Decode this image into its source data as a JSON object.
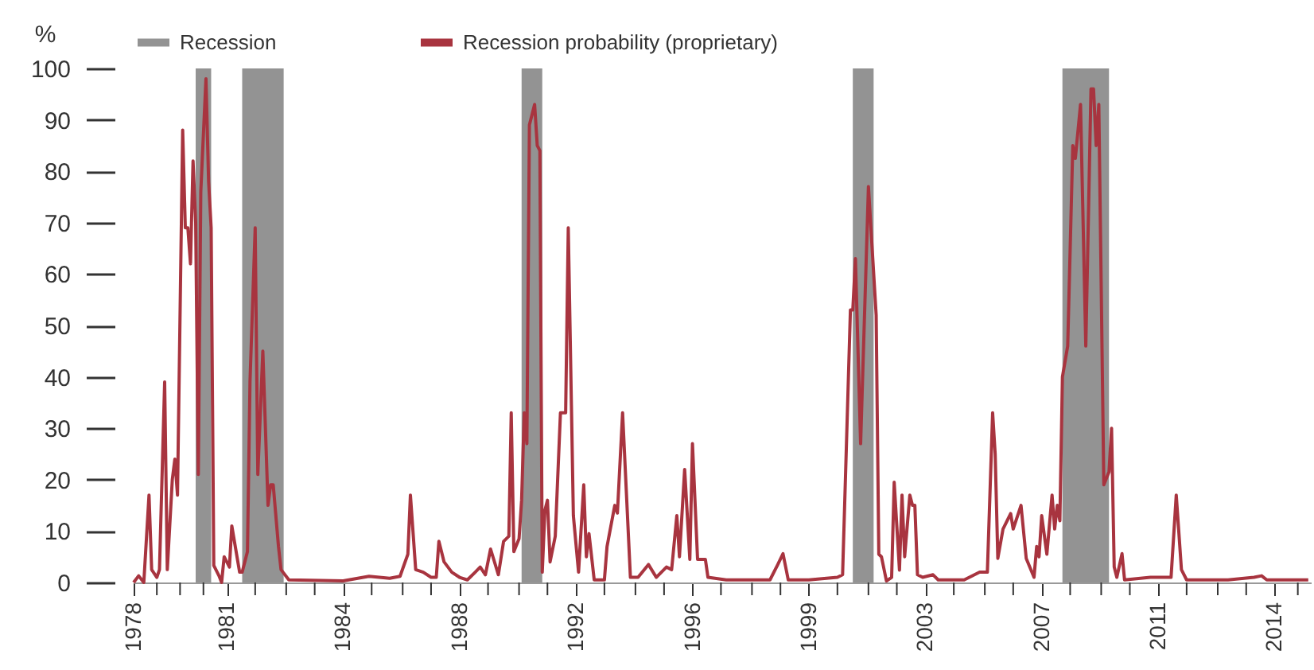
{
  "chart_data": {
    "type": "line",
    "ylabel": "%",
    "legend": "top",
    "grid": false,
    "marker": "none",
    "line_style": "solid",
    "xlim": [
      "1978-01",
      "2015-12"
    ],
    "xticks": [
      {
        "value": "1978-01",
        "label": "1978"
      },
      {
        "value": "1978-10",
        "label": null
      },
      {
        "value": "1979-07",
        "label": null
      },
      {
        "value": "1980-04",
        "label": null
      },
      {
        "value": "1981-01",
        "label": "1981"
      },
      {
        "value": "1981-12",
        "label": null
      },
      {
        "value": "1982-12",
        "label": null
      },
      {
        "value": "1983-11",
        "label": null
      },
      {
        "value": "1984-10",
        "label": "1984"
      },
      {
        "value": "1985-09",
        "label": null
      },
      {
        "value": "1986-09",
        "label": null
      },
      {
        "value": "1987-08",
        "label": null
      },
      {
        "value": "1988-07",
        "label": "1988"
      },
      {
        "value": "1989-06",
        "label": null
      },
      {
        "value": "1990-06",
        "label": null
      },
      {
        "value": "1991-05",
        "label": null
      },
      {
        "value": "1992-04",
        "label": "1992"
      },
      {
        "value": "1993-03",
        "label": null
      },
      {
        "value": "1994-03",
        "label": null
      },
      {
        "value": "1995-02",
        "label": null
      },
      {
        "value": "1996-01",
        "label": "1996"
      },
      {
        "value": "1996-12",
        "label": null
      },
      {
        "value": "1997-12",
        "label": null
      },
      {
        "value": "1998-11",
        "label": null
      },
      {
        "value": "1999-10",
        "label": "1999"
      },
      {
        "value": "2000-09",
        "label": null
      },
      {
        "value": "2001-09",
        "label": null
      },
      {
        "value": "2002-08",
        "label": null
      },
      {
        "value": "2003-07",
        "label": "2003"
      },
      {
        "value": "2004-06",
        "label": null
      },
      {
        "value": "2005-06",
        "label": null
      },
      {
        "value": "2006-05",
        "label": null
      },
      {
        "value": "2007-04",
        "label": "2007"
      },
      {
        "value": "2008-03",
        "label": null
      },
      {
        "value": "2009-03",
        "label": null
      },
      {
        "value": "2010-02",
        "label": null
      },
      {
        "value": "2011-01",
        "label": "2011"
      },
      {
        "value": "2011-12",
        "label": null
      },
      {
        "value": "2012-12",
        "label": null
      },
      {
        "value": "2013-11",
        "label": null
      },
      {
        "value": "2014-10",
        "label": "2014"
      },
      {
        "value": "2015-07",
        "label": null
      }
    ],
    "ylim": [
      0,
      100
    ],
    "yticks": [
      0,
      10,
      20,
      30,
      40,
      50,
      60,
      70,
      80,
      90,
      100
    ],
    "bands": [
      {
        "axis": "x",
        "from": "1980-01",
        "to": "1980-07",
        "label": "Recession",
        "color": "#939393"
      },
      {
        "axis": "x",
        "from": "1981-07",
        "to": "1982-11",
        "color": "#939393"
      },
      {
        "axis": "x",
        "from": "1990-07",
        "to": "1991-03",
        "color": "#939393"
      },
      {
        "axis": "x",
        "from": "2001-03",
        "to": "2001-11",
        "color": "#939393"
      },
      {
        "axis": "x",
        "from": "2007-12",
        "to": "2009-06",
        "color": "#939393"
      }
    ],
    "series": [
      {
        "name": "Recession probability (proprietary)",
        "color": "#a8343f",
        "x": [
          "1978-01",
          "1978-03",
          "1978-05",
          "1978-07",
          "1978-08",
          "1978-10",
          "1978-11",
          "1979-01",
          "1979-02",
          "1979-04",
          "1979-05",
          "1979-06",
          "1979-08",
          "1979-09",
          "1979-10",
          "1979-11",
          "1979-12",
          "1980-01",
          "1980-02",
          "1980-03",
          "1980-05",
          "1980-06",
          "1980-07",
          "1980-08",
          "1980-10",
          "1980-11",
          "1980-12",
          "1981-02",
          "1981-03",
          "1981-05",
          "1981-06",
          "1981-07",
          "1981-09",
          "1981-10",
          "1981-12",
          "1982-01",
          "1982-03",
          "1982-05",
          "1982-06",
          "1982-07",
          "1982-09",
          "1982-10",
          "1983-01",
          "1984-10",
          "1985-08",
          "1986-04",
          "1986-08",
          "1986-11",
          "1986-12",
          "1987-02",
          "1987-05",
          "1987-08",
          "1987-10",
          "1987-11",
          "1988-01",
          "1988-04",
          "1988-07",
          "1988-10",
          "1989-01",
          "1989-03",
          "1989-05",
          "1989-07",
          "1989-10",
          "1989-12",
          "1990-02",
          "1990-03",
          "1990-04",
          "1990-06",
          "1990-07",
          "1990-08",
          "1990-09",
          "1990-10",
          "1990-12",
          "1991-01",
          "1991-02",
          "1991-03",
          "1991-04",
          "1991-05",
          "1991-06",
          "1991-08",
          "1991-10",
          "1991-12",
          "1992-01",
          "1992-03",
          "1992-05",
          "1992-07",
          "1992-08",
          "1992-09",
          "1992-11",
          "1993-03",
          "1993-04",
          "1993-07",
          "1993-08",
          "1993-10",
          "1994-01",
          "1994-04",
          "1994-08",
          "1994-11",
          "1995-03",
          "1995-05",
          "1995-07",
          "1995-08",
          "1995-10",
          "1995-12",
          "1996-01",
          "1996-03",
          "1996-06",
          "1996-07",
          "1997-02",
          "1997-10",
          "1998-07",
          "1998-10",
          "1998-12",
          "1999-02",
          "1999-10",
          "2000-09",
          "2000-11",
          "2001-02",
          "2001-03",
          "2001-04",
          "2001-06",
          "2001-09",
          "2001-12",
          "2002-01",
          "2002-02",
          "2002-04",
          "2002-06",
          "2002-07",
          "2002-09",
          "2002-10",
          "2002-11",
          "2003-01",
          "2003-02",
          "2003-03",
          "2003-04",
          "2003-06",
          "2003-10",
          "2003-12",
          "2004-10",
          "2005-04",
          "2005-07",
          "2005-09",
          "2005-10",
          "2005-11",
          "2006-01",
          "2006-04",
          "2006-05",
          "2006-08",
          "2006-10",
          "2007-01",
          "2007-02",
          "2007-03",
          "2007-04",
          "2007-06",
          "2007-08",
          "2007-09",
          "2007-10",
          "2007-11",
          "2007-12",
          "2008-02",
          "2008-04",
          "2008-05",
          "2008-07",
          "2008-09",
          "2008-11",
          "2008-12",
          "2009-01",
          "2009-02",
          "2009-04",
          "2009-06",
          "2009-07",
          "2009-08",
          "2009-09",
          "2009-11",
          "2009-12",
          "2010-10",
          "2011-06",
          "2011-08",
          "2011-10",
          "2011-12",
          "2013-04",
          "2014-02",
          "2014-05",
          "2014-07",
          "2015-11"
        ],
        "values": [
          0,
          1.3,
          0,
          17,
          2.5,
          1,
          2.5,
          39,
          2.5,
          20,
          24,
          17,
          88,
          69,
          69,
          62,
          82,
          70,
          21,
          76,
          98,
          78,
          69,
          3.3,
          1.3,
          0,
          5,
          3,
          11,
          5,
          2,
          2,
          6,
          39,
          69,
          21,
          45,
          15,
          19,
          19,
          7,
          2.5,
          0.5,
          0.3,
          1.2,
          0.8,
          1.2,
          5.5,
          17,
          2.5,
          2,
          1,
          1,
          8,
          4,
          2,
          1,
          0.5,
          2,
          3,
          1.5,
          6.5,
          1.5,
          8,
          9,
          33,
          6,
          8.5,
          16,
          33,
          27,
          89,
          93,
          85,
          84,
          2,
          14,
          16,
          4,
          9,
          33,
          33,
          69,
          13,
          2,
          19,
          5,
          9.5,
          0.5,
          0.5,
          7,
          15,
          13.5,
          33,
          1,
          1,
          3.5,
          1,
          3,
          2.5,
          13,
          5,
          22,
          4.5,
          27,
          4.5,
          4.5,
          1,
          0.5,
          0.5,
          0.5,
          3.5,
          5.6,
          0.5,
          0.5,
          1,
          1.5,
          53,
          53,
          63,
          27,
          77,
          52,
          5.5,
          5,
          0.3,
          1,
          19.5,
          2.4,
          17,
          5,
          17,
          15,
          15,
          1.5,
          1,
          1.5,
          0.5,
          0.5,
          2,
          2,
          33,
          25,
          4.7,
          10.4,
          13.4,
          10.4,
          15,
          4.7,
          1,
          7,
          5,
          13,
          5.5,
          17,
          10.4,
          15,
          12,
          40,
          46,
          85,
          82.5,
          93,
          46,
          96,
          96,
          85,
          93,
          19,
          21.5,
          30,
          3,
          1,
          5.6,
          0.5,
          1,
          1,
          17,
          2.5,
          0.5,
          0.5,
          1,
          1.3,
          0.5,
          0.5
        ]
      }
    ]
  }
}
